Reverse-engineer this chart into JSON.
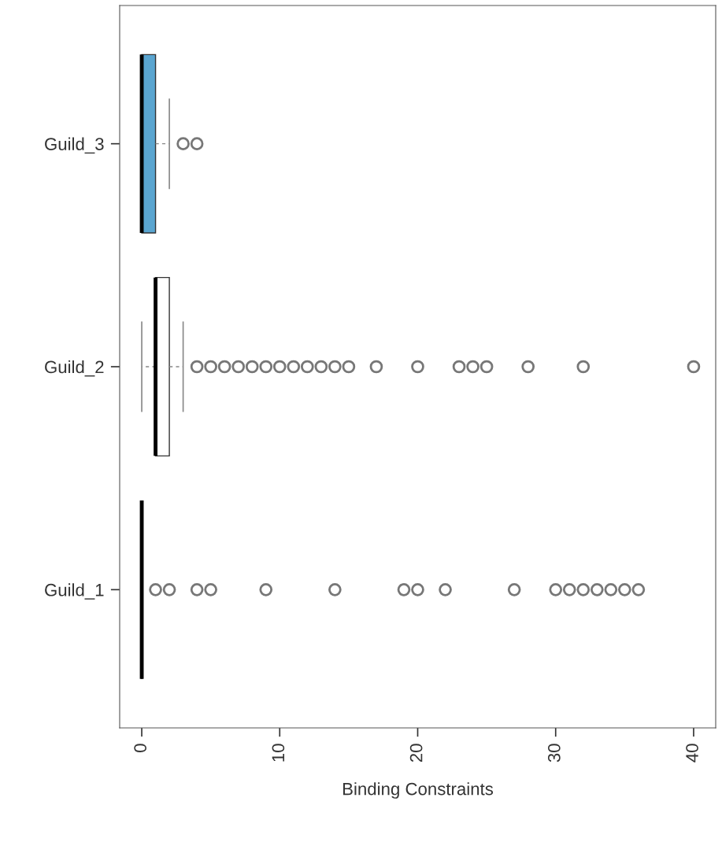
{
  "chart_data": {
    "type": "box",
    "orientation": "horizontal",
    "xlabel": "Binding Constraints",
    "categories": [
      "Guild_3",
      "Guild_2",
      "Guild_1"
    ],
    "boxes": [
      {
        "low": 0,
        "q1": 0,
        "median": 0,
        "q3": 1,
        "high": 2,
        "outliers": [
          3,
          4
        ]
      },
      {
        "low": 0,
        "q1": 1,
        "median": 1,
        "q3": 2,
        "high": 3,
        "outliers": [
          4,
          5,
          6,
          7,
          8,
          9,
          10,
          11,
          12,
          13,
          14,
          15,
          17,
          20,
          23,
          24,
          25,
          28,
          32,
          40
        ]
      },
      {
        "low": 0,
        "q1": 0,
        "median": 0,
        "q3": 0,
        "high": 0,
        "outliers": [
          1,
          2,
          4,
          5,
          9,
          14,
          19,
          20,
          22,
          27,
          30,
          31,
          32,
          33,
          34,
          35,
          36
        ]
      }
    ],
    "colors": [
      "#5aa5d0",
      "#ffffff",
      "#000000"
    ],
    "xlim": [
      -1.6,
      41.6
    ],
    "xticks": [
      0,
      10,
      20,
      30,
      40
    ],
    "grid": false,
    "marker": "circle"
  }
}
